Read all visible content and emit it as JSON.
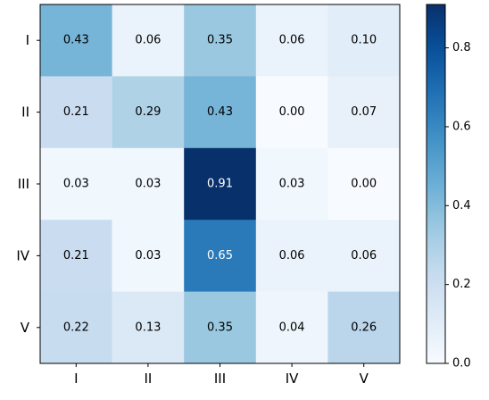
{
  "chart_data": {
    "type": "heatmap",
    "title": "",
    "xlabel": "",
    "ylabel": "",
    "row_labels": [
      "I",
      "II",
      "III",
      "IV",
      "V"
    ],
    "col_labels": [
      "I",
      "II",
      "III",
      "IV",
      "V"
    ],
    "values": [
      [
        0.43,
        0.06,
        0.35,
        0.06,
        0.1
      ],
      [
        0.21,
        0.29,
        0.43,
        0.0,
        0.07
      ],
      [
        0.03,
        0.03,
        0.91,
        0.03,
        0.0
      ],
      [
        0.21,
        0.03,
        0.65,
        0.06,
        0.06
      ],
      [
        0.22,
        0.13,
        0.35,
        0.04,
        0.26
      ]
    ],
    "cell_labels": [
      [
        "0.43",
        "0.06",
        "0.35",
        "0.06",
        "0.10"
      ],
      [
        "0.21",
        "0.29",
        "0.43",
        "0.00",
        "0.07"
      ],
      [
        "0.03",
        "0.03",
        "0.91",
        "0.03",
        "0.00"
      ],
      [
        "0.21",
        "0.03",
        "0.65",
        "0.06",
        "0.06"
      ],
      [
        "0.22",
        "0.13",
        "0.35",
        "0.04",
        "0.26"
      ]
    ],
    "colormap": "Blues",
    "vmin": 0.0,
    "vmax": 0.91,
    "colorbar": {
      "ticks": [
        0.0,
        0.2,
        0.4,
        0.6,
        0.8
      ],
      "tick_labels": [
        "0.0",
        "0.2",
        "0.4",
        "0.6",
        "0.8"
      ]
    },
    "colors": {
      "low": "#f7fbff",
      "high": "#08306b",
      "text_dark": "#000000",
      "text_light": "#ffffff"
    }
  }
}
